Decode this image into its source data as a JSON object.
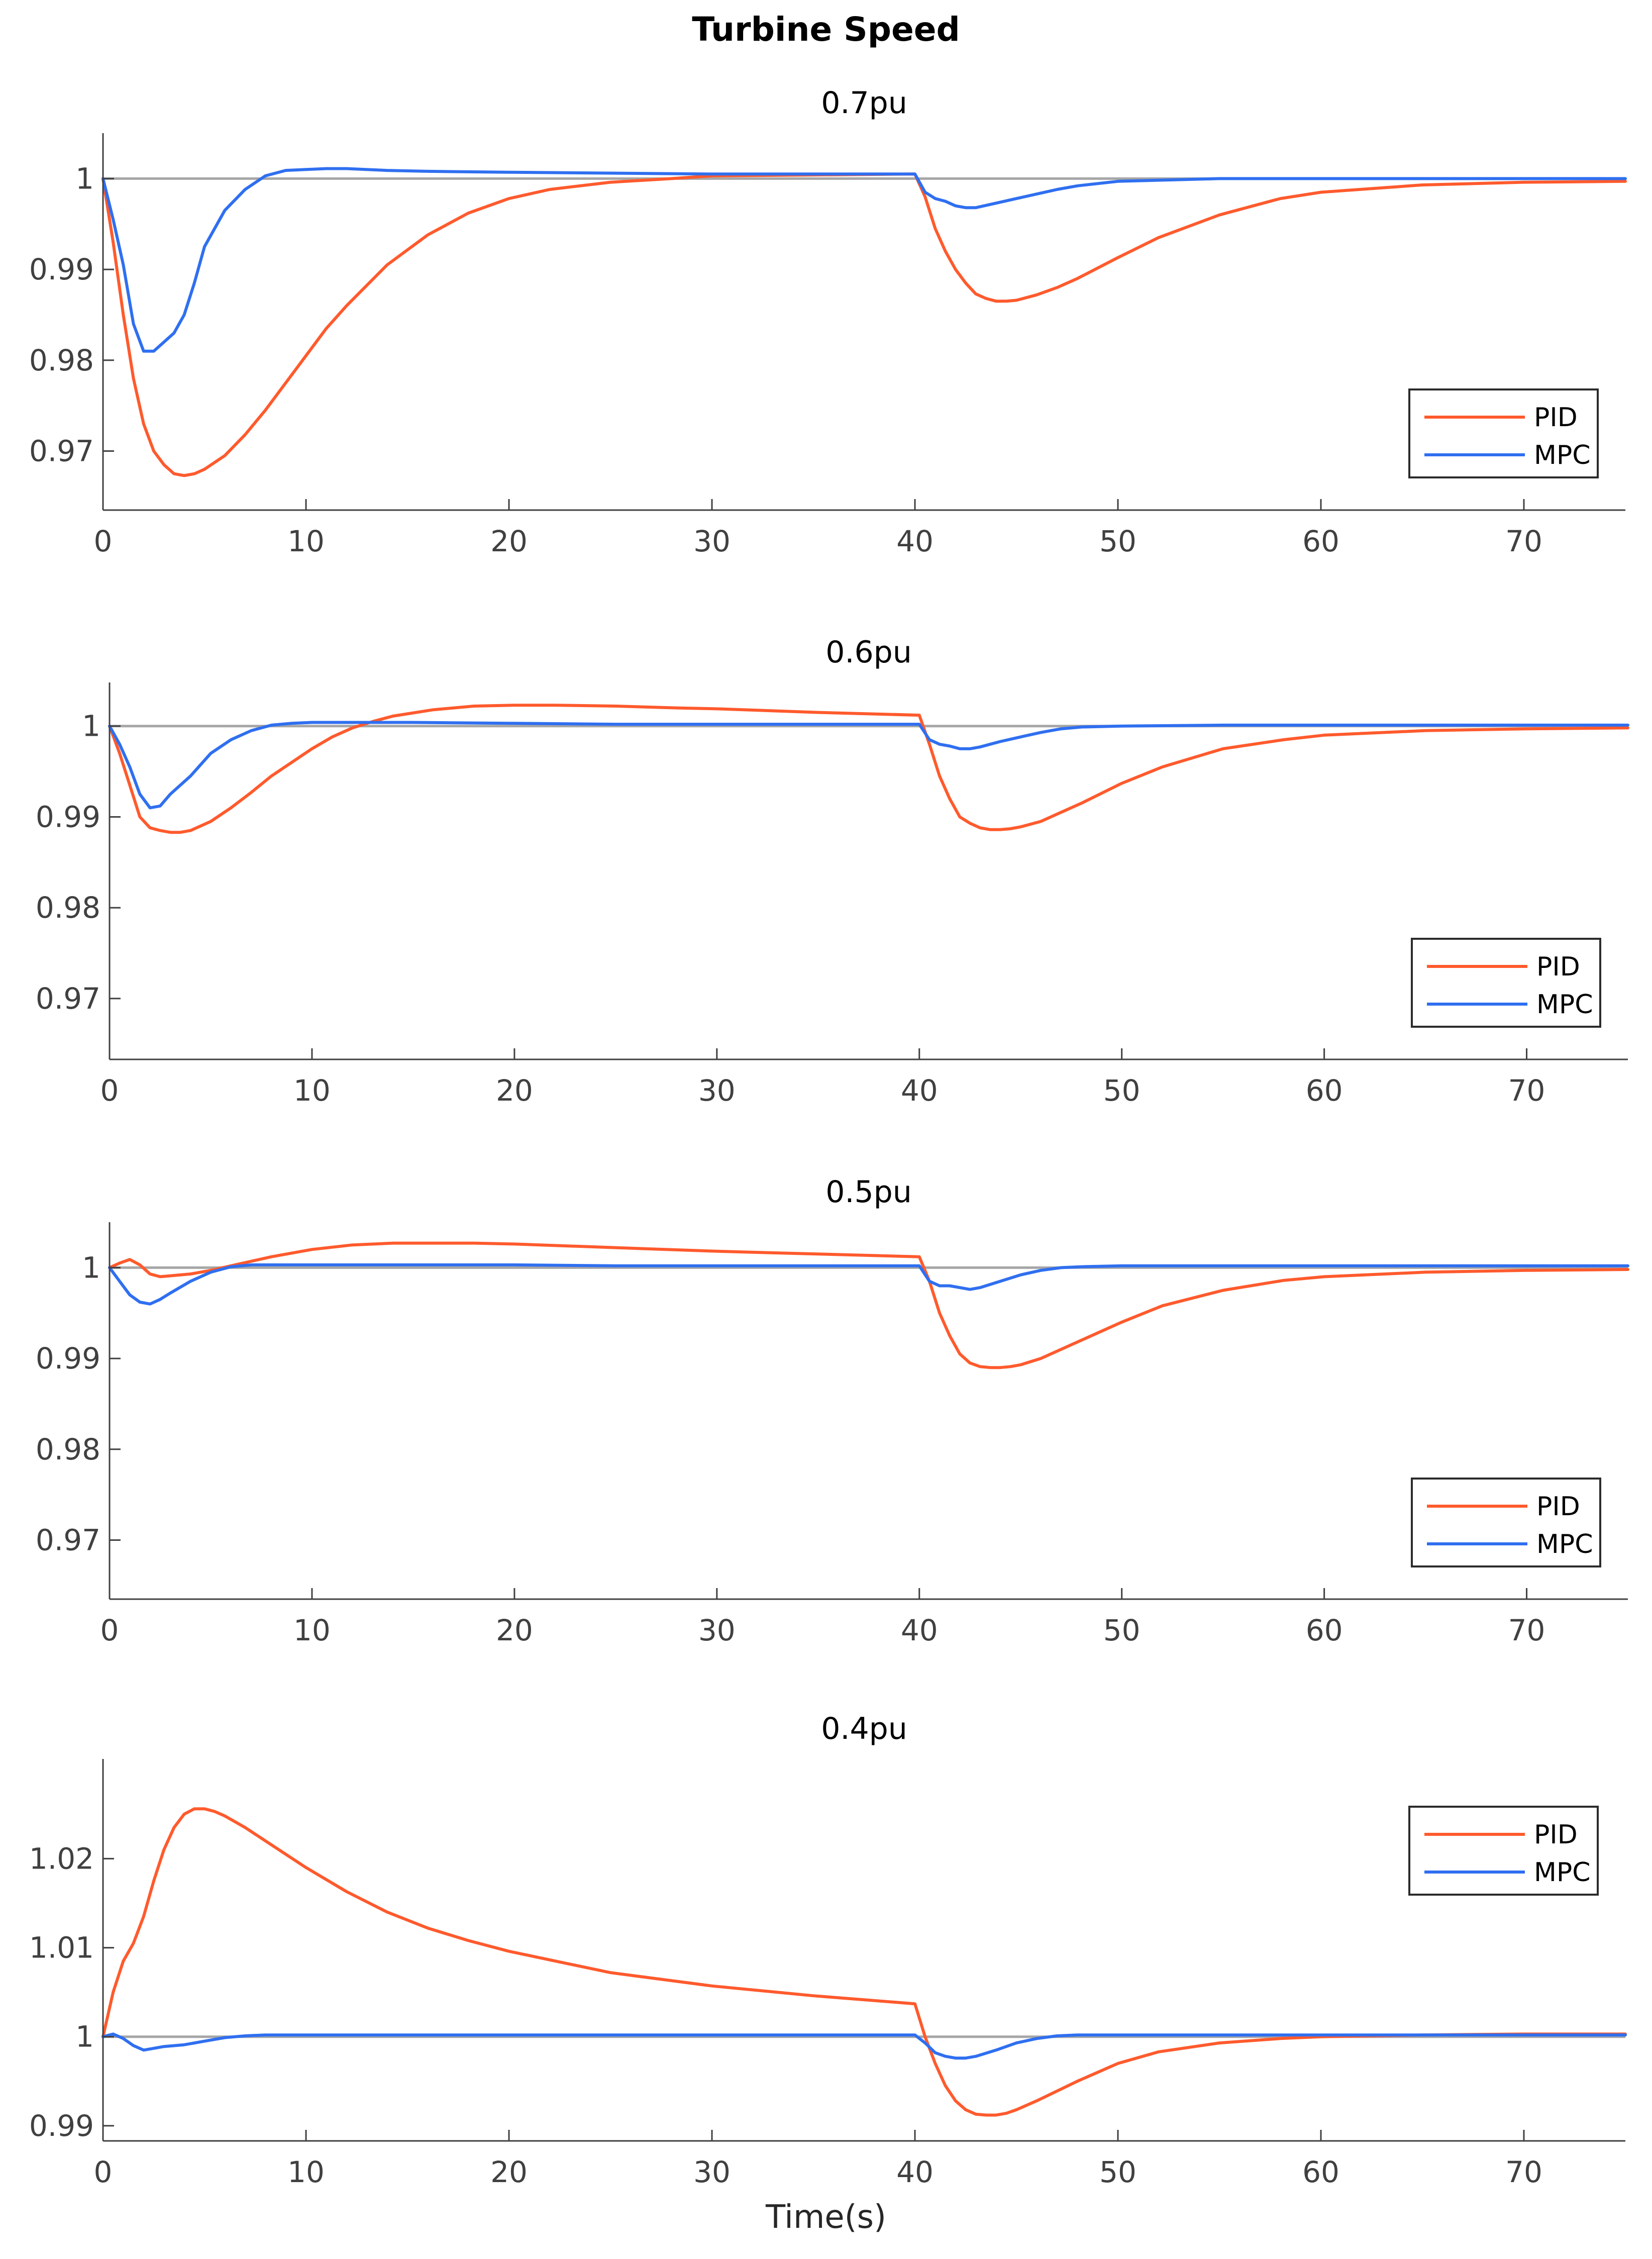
{
  "figure": {
    "title": "Turbine Speed",
    "xlabel": "Time(s)"
  },
  "colors": {
    "pid": "#FF5A2D",
    "mpc": "#2F6FF0",
    "reference": "#A6A6A6",
    "axis": "#404040",
    "legend_border": "#2b2b2b"
  },
  "chart_data": [
    {
      "type": "line",
      "title": "0.7pu",
      "xlim": [
        0,
        75
      ],
      "ylim": [
        0.9635,
        1.005
      ],
      "xticks": [
        0,
        10,
        20,
        30,
        40,
        50,
        60,
        70
      ],
      "yticks": [
        0.97,
        0.98,
        0.99,
        1
      ],
      "legend_position": "bottom-right",
      "reference": 1,
      "series": [
        {
          "name": "PID",
          "color_key": "pid",
          "x": [
            0,
            0.5,
            1,
            1.5,
            2,
            2.5,
            3,
            3.5,
            4,
            4.5,
            5,
            6,
            7,
            8,
            9,
            10,
            11,
            12,
            14,
            16,
            18,
            20,
            22,
            25,
            28,
            30,
            35,
            40,
            40.5,
            41,
            41.5,
            42,
            42.5,
            43,
            43.5,
            44,
            44.5,
            45,
            46,
            47,
            48,
            50,
            52,
            55,
            58,
            60,
            65,
            70,
            75
          ],
          "y": [
            1.0,
            0.993,
            0.985,
            0.978,
            0.973,
            0.97,
            0.9685,
            0.9675,
            0.9673,
            0.9675,
            0.968,
            0.9695,
            0.9718,
            0.9745,
            0.9775,
            0.9805,
            0.9835,
            0.986,
            0.9905,
            0.9938,
            0.9962,
            0.9978,
            0.9988,
            0.9996,
            1.0,
            1.0003,
            1.0004,
            1.0005,
            0.998,
            0.9945,
            0.992,
            0.99,
            0.9885,
            0.9873,
            0.9868,
            0.9865,
            0.9865,
            0.9866,
            0.9872,
            0.988,
            0.989,
            0.9913,
            0.9935,
            0.996,
            0.9978,
            0.9985,
            0.9993,
            0.9996,
            0.9997
          ]
        },
        {
          "name": "MPC",
          "color_key": "mpc",
          "x": [
            0,
            0.5,
            1,
            1.5,
            2,
            2.5,
            3,
            3.5,
            4,
            4.5,
            5,
            6,
            7,
            8,
            9,
            10,
            11,
            12,
            14,
            16,
            20,
            25,
            30,
            35,
            40,
            40.5,
            41,
            41.5,
            42,
            42.5,
            43,
            44,
            45,
            46,
            47,
            48,
            50,
            55,
            60,
            65,
            70,
            75
          ],
          "y": [
            1.0,
            0.9955,
            0.9905,
            0.984,
            0.981,
            0.981,
            0.982,
            0.983,
            0.985,
            0.9885,
            0.9925,
            0.9965,
            0.9988,
            1.0003,
            1.0009,
            1.001,
            1.0011,
            1.0011,
            1.0009,
            1.0008,
            1.0007,
            1.0006,
            1.0005,
            1.0005,
            1.0005,
            0.9985,
            0.9978,
            0.9975,
            0.997,
            0.9968,
            0.9968,
            0.9973,
            0.9978,
            0.9983,
            0.9988,
            0.9992,
            0.9997,
            1.0,
            1.0,
            1.0,
            1.0,
            1.0
          ]
        }
      ]
    },
    {
      "type": "line",
      "title": "0.6pu",
      "xlim": [
        0,
        75
      ],
      "ylim": [
        0.9633,
        1.0048
      ],
      "xticks": [
        0,
        10,
        20,
        30,
        40,
        50,
        60,
        70
      ],
      "yticks": [
        0.97,
        0.98,
        0.99,
        1
      ],
      "legend_position": "bottom-right",
      "reference": 1,
      "series": [
        {
          "name": "PID",
          "color_key": "pid",
          "x": [
            0,
            0.5,
            1,
            1.5,
            2,
            2.5,
            3,
            3.5,
            4,
            5,
            6,
            7,
            8,
            9,
            10,
            11,
            12,
            13,
            14,
            16,
            18,
            20,
            22,
            25,
            28,
            30,
            35,
            40,
            40.5,
            41,
            41.5,
            42,
            42.5,
            43,
            43.5,
            44,
            44.5,
            45,
            46,
            47,
            48,
            50,
            52,
            55,
            58,
            60,
            65,
            70,
            75
          ],
          "y": [
            1.0,
            0.997,
            0.9935,
            0.99,
            0.9888,
            0.9885,
            0.9883,
            0.9883,
            0.9885,
            0.9895,
            0.991,
            0.9927,
            0.9945,
            0.996,
            0.9975,
            0.9988,
            0.9998,
            1.0005,
            1.0011,
            1.0018,
            1.0022,
            1.0023,
            1.0023,
            1.0022,
            1.002,
            1.0019,
            1.0015,
            1.0012,
            0.998,
            0.9945,
            0.992,
            0.99,
            0.9893,
            0.9888,
            0.9886,
            0.9886,
            0.9887,
            0.9889,
            0.9895,
            0.9905,
            0.9915,
            0.9937,
            0.9955,
            0.9975,
            0.9985,
            0.999,
            0.9995,
            0.9997,
            0.9998
          ]
        },
        {
          "name": "MPC",
          "color_key": "mpc",
          "x": [
            0,
            0.5,
            1,
            1.5,
            2,
            2.5,
            3,
            4,
            5,
            6,
            7,
            8,
            9,
            10,
            12,
            15,
            20,
            25,
            30,
            35,
            40,
            40.5,
            41,
            41.5,
            42,
            42.5,
            43,
            44,
            45,
            46,
            47,
            48,
            50,
            55,
            60,
            65,
            70,
            75
          ],
          "y": [
            1.0,
            0.998,
            0.9955,
            0.9925,
            0.991,
            0.9912,
            0.9925,
            0.9945,
            0.997,
            0.9985,
            0.9995,
            1.0001,
            1.0003,
            1.0004,
            1.0004,
            1.0004,
            1.0003,
            1.0002,
            1.0002,
            1.0002,
            1.0002,
            0.9985,
            0.998,
            0.9978,
            0.9975,
            0.9975,
            0.9977,
            0.9983,
            0.9988,
            0.9993,
            0.9997,
            0.9999,
            1.0,
            1.0001,
            1.0001,
            1.0001,
            1.0001,
            1.0001
          ]
        }
      ]
    },
    {
      "type": "line",
      "title": "0.5pu",
      "xlim": [
        0,
        75
      ],
      "ylim": [
        0.9635,
        1.005
      ],
      "xticks": [
        0,
        10,
        20,
        30,
        40,
        50,
        60,
        70
      ],
      "yticks": [
        0.97,
        0.98,
        0.99,
        1
      ],
      "legend_position": "bottom-right",
      "reference": 1,
      "series": [
        {
          "name": "PID",
          "color_key": "pid",
          "x": [
            0,
            0.5,
            1,
            1.5,
            2,
            2.5,
            3,
            4,
            5,
            6,
            8,
            10,
            12,
            14,
            16,
            18,
            20,
            25,
            30,
            35,
            40,
            40.5,
            41,
            41.5,
            42,
            42.5,
            43,
            43.5,
            44,
            44.5,
            45,
            46,
            48,
            50,
            52,
            55,
            58,
            60,
            65,
            70,
            75
          ],
          "y": [
            1.0,
            1.0005,
            1.0009,
            1.0003,
            0.9993,
            0.999,
            0.9991,
            0.9993,
            0.9997,
            1.0002,
            1.0012,
            1.002,
            1.0025,
            1.0027,
            1.0027,
            1.0027,
            1.0026,
            1.0022,
            1.0018,
            1.0015,
            1.0012,
            0.9985,
            0.995,
            0.9925,
            0.9905,
            0.9895,
            0.9891,
            0.989,
            0.989,
            0.9891,
            0.9893,
            0.99,
            0.992,
            0.994,
            0.9958,
            0.9975,
            0.9986,
            0.999,
            0.9995,
            0.9997,
            0.9998
          ]
        },
        {
          "name": "MPC",
          "color_key": "mpc",
          "x": [
            0,
            0.5,
            1,
            1.5,
            2,
            2.5,
            3,
            4,
            5,
            6,
            7,
            8,
            10,
            15,
            20,
            25,
            30,
            35,
            40,
            40.5,
            41,
            41.5,
            42,
            42.5,
            43,
            44,
            45,
            46,
            47,
            48,
            50,
            55,
            60,
            65,
            70,
            75
          ],
          "y": [
            1.0,
            0.9985,
            0.997,
            0.9962,
            0.996,
            0.9965,
            0.9972,
            0.9985,
            0.9995,
            1.0001,
            1.0003,
            1.0003,
            1.0003,
            1.0003,
            1.0003,
            1.0002,
            1.0002,
            1.0002,
            1.0002,
            0.9985,
            0.998,
            0.998,
            0.9978,
            0.9976,
            0.9978,
            0.9985,
            0.9992,
            0.9997,
            1.0,
            1.0001,
            1.0002,
            1.0002,
            1.0002,
            1.0002,
            1.0002,
            1.0002
          ]
        }
      ]
    },
    {
      "type": "line",
      "title": "0.4pu",
      "xlim": [
        0,
        75
      ],
      "ylim": [
        0.9883,
        1.0312
      ],
      "xticks": [
        0,
        10,
        20,
        30,
        40,
        50,
        60,
        70
      ],
      "yticks": [
        0.99,
        1,
        1.01,
        1.02
      ],
      "legend_position": "top-right",
      "reference": 1,
      "series": [
        {
          "name": "PID",
          "color_key": "pid",
          "x": [
            0,
            0.5,
            1,
            1.5,
            2,
            2.5,
            3,
            3.5,
            4,
            4.5,
            5,
            5.5,
            6,
            7,
            8,
            10,
            12,
            14,
            16,
            18,
            20,
            25,
            30,
            35,
            40,
            40.5,
            41,
            41.5,
            42,
            42.5,
            43,
            43.5,
            44,
            44.5,
            45,
            46,
            48,
            50,
            52,
            55,
            58,
            60,
            65,
            70,
            75
          ],
          "y": [
            1.0,
            1.005,
            1.0085,
            1.0105,
            1.0135,
            1.0175,
            1.021,
            1.0235,
            1.025,
            1.0256,
            1.0256,
            1.0253,
            1.0248,
            1.0235,
            1.022,
            1.019,
            1.0163,
            1.014,
            1.0122,
            1.0108,
            1.0096,
            1.0072,
            1.0057,
            1.0046,
            1.0037,
            1.0,
            0.997,
            0.9945,
            0.9928,
            0.9918,
            0.9913,
            0.9912,
            0.9912,
            0.9914,
            0.9918,
            0.9928,
            0.995,
            0.997,
            0.9983,
            0.9993,
            0.9998,
            1.0,
            1.0002,
            1.0003,
            1.0003
          ]
        },
        {
          "name": "MPC",
          "color_key": "mpc",
          "x": [
            0,
            0.5,
            1,
            1.5,
            2,
            2.5,
            3,
            4,
            5,
            6,
            7,
            8,
            10,
            15,
            20,
            25,
            30,
            35,
            40,
            40.5,
            41,
            41.5,
            42,
            42.5,
            43,
            44,
            45,
            46,
            47,
            48,
            50,
            55,
            60,
            65,
            70,
            75
          ],
          "y": [
            1.0,
            1.0003,
            0.9998,
            0.999,
            0.9985,
            0.9987,
            0.9989,
            0.9991,
            0.9995,
            0.9999,
            1.0001,
            1.0002,
            1.0002,
            1.0002,
            1.0002,
            1.0002,
            1.0002,
            1.0002,
            1.0002,
            0.9993,
            0.9982,
            0.9978,
            0.9976,
            0.9976,
            0.9978,
            0.9985,
            0.9993,
            0.9998,
            1.0001,
            1.0002,
            1.0002,
            1.0002,
            1.0002,
            1.0002,
            1.0002,
            1.0002
          ]
        }
      ]
    }
  ]
}
